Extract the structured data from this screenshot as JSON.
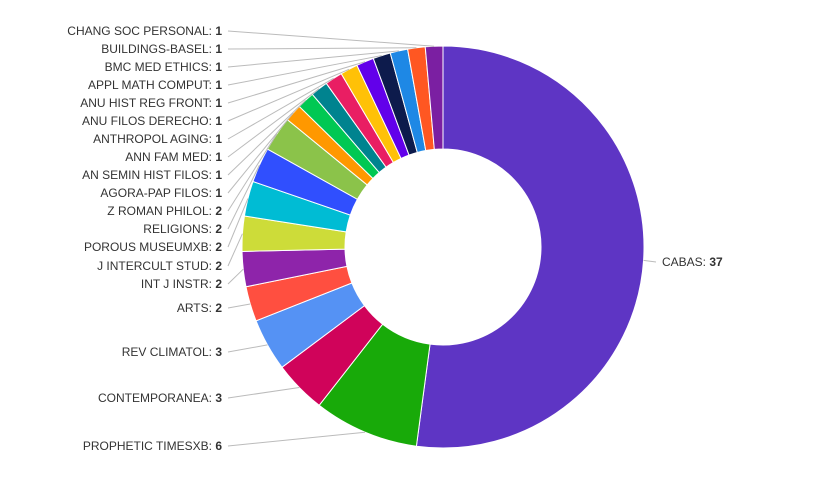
{
  "chart_data": {
    "type": "pie",
    "donut": true,
    "title": "",
    "slices": [
      {
        "label": "CABAS",
        "value": 37,
        "color": "#5e35c4"
      },
      {
        "label": "PROPHETIC TIMESXB",
        "value": 6,
        "color": "#18aa09"
      },
      {
        "label": "CONTEMPORANEA",
        "value": 3,
        "color": "#d0035a"
      },
      {
        "label": "REV CLIMATOL",
        "value": 3,
        "color": "#5592f4"
      },
      {
        "label": "ARTS",
        "value": 2,
        "color": "#ff4f40"
      },
      {
        "label": "INT J INSTR",
        "value": 2,
        "color": "#8e24aa"
      },
      {
        "label": "J INTERCULT STUD",
        "value": 2,
        "color": "#cddc39"
      },
      {
        "label": "POROUS MUSEUMXB",
        "value": 2,
        "color": "#00bcd4"
      },
      {
        "label": "RELIGIONS",
        "value": 2,
        "color": "#304ffe"
      },
      {
        "label": "Z ROMAN PHILOL",
        "value": 2,
        "color": "#8bc34a"
      },
      {
        "label": "AGORA-PAP FILOS",
        "value": 1,
        "color": "#ff9800"
      },
      {
        "label": "AN SEMIN HIST FILOS",
        "value": 1,
        "color": "#00c853"
      },
      {
        "label": "ANN FAM MED",
        "value": 1,
        "color": "#00838f"
      },
      {
        "label": "ANTHROPOL AGING",
        "value": 1,
        "color": "#e91e63"
      },
      {
        "label": "ANU FILOS DERECHO",
        "value": 1,
        "color": "#ffc107"
      },
      {
        "label": "ANU HIST REG FRONT",
        "value": 1,
        "color": "#6200ea"
      },
      {
        "label": "APPL MATH COMPUT",
        "value": 1,
        "color": "#0d1b4c"
      },
      {
        "label": "BMC MED ETHICS",
        "value": 1,
        "color": "#1e88e5"
      },
      {
        "label": "BUILDINGS-BASEL",
        "value": 1,
        "color": "#ff5722"
      },
      {
        "label": "CHANG SOC PERSONAL",
        "value": 1,
        "color": "#7b1fa2"
      }
    ]
  }
}
